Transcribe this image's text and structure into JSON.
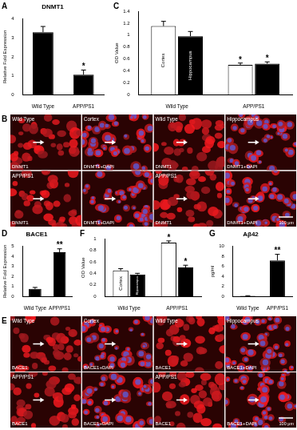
{
  "chart_data": [
    {
      "panel": "A",
      "type": "bar",
      "title": "DNMT1",
      "y_label": "Relative Fold Expression",
      "categories": [
        "Wild Type",
        "APP/PS1"
      ],
      "values": [
        3.3,
        1.05
      ],
      "errors": [
        0.3,
        0.25
      ],
      "significance": [
        null,
        "*"
      ],
      "color": "#000000",
      "ylim": [
        0,
        4
      ],
      "yticks": [
        0,
        1,
        2,
        3,
        4
      ],
      "grid": false
    },
    {
      "panel": "C",
      "type": "bar",
      "y_label": "OD Value",
      "categories": [
        "Wild Type",
        "APP/PS1"
      ],
      "series": [
        {
          "name": "Cortex",
          "color": "#ffffff",
          "values": [
            1.15,
            0.5
          ],
          "errors": [
            0.08,
            0.03
          ],
          "significance": [
            null,
            "*"
          ]
        },
        {
          "name": "Hippocampus",
          "color": "#000000",
          "values": [
            0.98,
            0.52
          ],
          "errors": [
            0.08,
            0.03
          ],
          "significance": [
            null,
            "*"
          ]
        }
      ],
      "ylim": [
        0,
        1.4
      ],
      "yticks": [
        0,
        0.2,
        0.4,
        0.6,
        0.8,
        1,
        1.2,
        1.4
      ],
      "grid": false
    },
    {
      "panel": "D",
      "type": "bar",
      "title": "BACE1",
      "y_label": "Relative Fold Expression",
      "categories": [
        "Wild Type",
        "APP/PS1"
      ],
      "values": [
        0.75,
        4.4
      ],
      "errors": [
        0.15,
        0.35
      ],
      "significance": [
        null,
        "**"
      ],
      "color": "#000000",
      "ylim": [
        0,
        5
      ],
      "yticks": [
        0,
        1,
        2,
        3,
        4,
        5
      ],
      "grid": false
    },
    {
      "panel": "F",
      "type": "bar",
      "y_label": "OD Value",
      "categories": [
        "Wild Type",
        "APP/PS1"
      ],
      "series": [
        {
          "name": "Cortex",
          "color": "#ffffff",
          "values": [
            0.45,
            0.93
          ],
          "errors": [
            0.03,
            0.03
          ],
          "significance": [
            null,
            "*"
          ]
        },
        {
          "name": "Hippocampus",
          "color": "#000000",
          "values": [
            0.38,
            0.5
          ],
          "errors": [
            0.02,
            0.04
          ],
          "significance": [
            null,
            "*"
          ]
        }
      ],
      "ylim": [
        0,
        1
      ],
      "yticks": [
        0,
        0.2,
        0.4,
        0.6,
        0.8,
        1
      ],
      "grid": false
    },
    {
      "panel": "G",
      "type": "bar",
      "title": "Aβ42",
      "y_label": "pg/ml",
      "categories": [
        "Wild Type",
        "APP/PS1"
      ],
      "values": [
        0.1,
        7.2
      ],
      "errors": [
        0.05,
        1.2
      ],
      "significance": [
        null,
        "**"
      ],
      "color": "#000000",
      "ylim": [
        0,
        10
      ],
      "yticks": [
        0,
        2,
        4,
        6,
        8,
        10
      ],
      "grid": false
    }
  ],
  "micrographs": [
    {
      "panel": "B",
      "genotypes": [
        "Wild Type",
        "APP/PS1"
      ],
      "regions": [
        {
          "name": "Cortex",
          "channels": [
            "DNMT1",
            "DNMT1+DAPI"
          ]
        },
        {
          "name": "Hippocampus",
          "channels": [
            "DNMT1",
            "DNMT1+DAPI"
          ]
        }
      ],
      "scale_bar": "100 μm"
    },
    {
      "panel": "E",
      "genotypes": [
        "Wild Type",
        "APP/PS1"
      ],
      "regions": [
        {
          "name": "Cortex",
          "channels": [
            "BACE1",
            "BACE1+DAPI"
          ]
        },
        {
          "name": "Hippocampus",
          "channels": [
            "BACE1",
            "BACE1+DAPI"
          ]
        }
      ],
      "scale_bar": "100 μm"
    }
  ]
}
